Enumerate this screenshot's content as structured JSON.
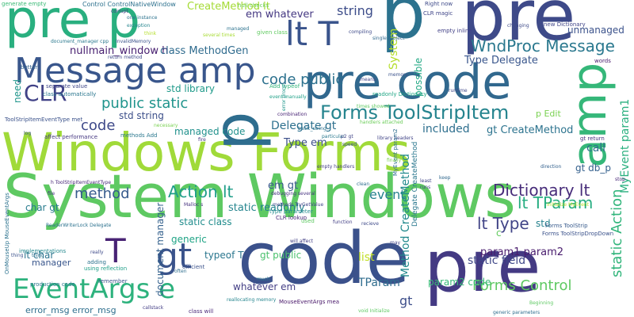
{
  "words": [
    {
      "text": "Windows Forms",
      "color": "#a0da39"
    },
    {
      "text": "System Windows",
      "color": "#5ec962"
    },
    {
      "text": "code",
      "color": "#3b518b"
    },
    {
      "text": "pre",
      "color": "#443a83"
    },
    {
      "text": "pre code",
      "color": "#31688e"
    },
    {
      "text": "p",
      "color": "#2c728e"
    },
    {
      "text": "pre",
      "color": "#3e4a89"
    },
    {
      "text": "pre p",
      "color": "#29af7f"
    },
    {
      "text": "Message amp",
      "color": "#39568c"
    },
    {
      "text": "amp",
      "color": "#35b779"
    },
    {
      "text": "p",
      "color": "#2e6d8e"
    },
    {
      "text": "lt T",
      "color": "#3a548c"
    },
    {
      "text": "gt",
      "color": "#3a538b"
    },
    {
      "text": "T",
      "color": "#482374"
    },
    {
      "text": "EventArgs e",
      "color": "#2db27d"
    },
    {
      "text": "CLR",
      "color": "#414287"
    },
    {
      "text": "WndProc Message",
      "color": "#2a788e"
    },
    {
      "text": "Forms ToolStripItem",
      "color": "#25848e"
    },
    {
      "text": "Dictionary lt",
      "color": "#472c7a"
    },
    {
      "text": "Action lt",
      "color": "#1f9e89"
    },
    {
      "text": "code public",
      "color": "#2c718e"
    },
    {
      "text": "public static",
      "color": "#1f948c"
    },
    {
      "text": "string",
      "color": "#3d4d8a"
    },
    {
      "text": "method",
      "color": "#375b8d"
    },
    {
      "text": "lt Type",
      "color": "#414487"
    },
    {
      "text": "lt TParam",
      "color": "#26ad81"
    },
    {
      "text": "Forms Control",
      "color": "#5ec962"
    },
    {
      "text": "static Action",
      "color": "#31b57b"
    },
    {
      "text": "MyEvent param1",
      "color": "#2ab07f"
    },
    {
      "text": "nullmain_window h",
      "color": "#482071"
    },
    {
      "text": "class MethodGen",
      "color": "#2f6b8e"
    },
    {
      "text": "em whatever",
      "color": "#453882"
    },
    {
      "text": "Type Delegate",
      "color": "#39568c"
    },
    {
      "text": "included",
      "color": "#2e6f8e"
    },
    {
      "text": "gt CreateMethod",
      "color": "#2c738e"
    },
    {
      "text": "event",
      "color": "#26828e"
    },
    {
      "text": "param1 param2",
      "color": "#481b6d"
    },
    {
      "text": "static field",
      "color": "#3f4788"
    },
    {
      "text": "gt db_p",
      "color": "#34608d"
    },
    {
      "text": "call",
      "color": "#2e6e8e"
    },
    {
      "text": "CreateMethod lt",
      "color": "#a5db36"
    },
    {
      "text": "std library",
      "color": "#1f9a8a"
    },
    {
      "text": "std string",
      "color": "#3c4f8a"
    },
    {
      "text": "managed code",
      "color": "#21918c"
    },
    {
      "text": "Delegate gt",
      "color": "#2d708e"
    },
    {
      "text": "em gt",
      "color": "#38598c"
    },
    {
      "text": "static readonly",
      "color": "#25858e"
    },
    {
      "text": "static class",
      "color": "#228d8d"
    },
    {
      "text": "typeof T",
      "color": "#2a768e"
    },
    {
      "text": "gt public",
      "color": "#4ac16d"
    },
    {
      "text": "whatever em",
      "color": "#433e85"
    },
    {
      "text": "TParam",
      "color": "#2f6c8e"
    },
    {
      "text": "param2 code",
      "color": "#38b977"
    },
    {
      "text": "lt char",
      "color": "#2b748e"
    },
    {
      "text": "generic",
      "color": "#20a486"
    },
    {
      "text": "char gt",
      "color": "#287c8e"
    },
    {
      "text": "error_msg error_msg",
      "color": "#2e6f8e"
    },
    {
      "text": "manager",
      "color": "#39568c"
    },
    {
      "text": "list",
      "color": "#c2df23"
    },
    {
      "text": "gt",
      "color": "#3d4e8a"
    },
    {
      "text": "code",
      "color": "#3e4989"
    },
    {
      "text": "System",
      "color": "#b5de2b"
    },
    {
      "text": "possible",
      "color": "#22a884"
    },
    {
      "text": "need",
      "color": "#1f958b"
    },
    {
      "text": "Method CreateMethod",
      "color": "#238a8d"
    },
    {
      "text": "document manager",
      "color": "#34618d"
    },
    {
      "text": "Type em",
      "color": "#3c4f8a"
    },
    {
      "text": "std",
      "color": "#26828e"
    },
    {
      "text": "c",
      "color": "#63cb5f"
    },
    {
      "text": "p Edit",
      "color": "#7ad151"
    },
    {
      "text": "unmanaged",
      "color": "#3b528b"
    },
    {
      "text": "null checks",
      "color": "#6ece58"
    },
    {
      "text": "CLR magic",
      "color": "#404688"
    },
    {
      "text": "Right now",
      "color": "#3e4a89"
    },
    {
      "text": "generate empty",
      "color": "#3aba76"
    },
    {
      "text": "Control ControlNativeWindow",
      "color": "#2d718e"
    },
    {
      "text": "several times",
      "color": "#a8db34"
    },
    {
      "text": "new Dictionary",
      "color": "#404588"
    },
    {
      "text": "empty inline",
      "color": "#424086"
    },
    {
      "text": "given class",
      "color": "#60ca60"
    },
    {
      "text": "event manually",
      "color": "#1fa187"
    },
    {
      "text": "readonly Dictionary",
      "color": "#21a685"
    },
    {
      "text": "class automatically",
      "color": "#2a768e"
    },
    {
      "text": "separate value",
      "color": "#3f4788"
    },
    {
      "text": "return method",
      "color": "#3e4989"
    },
    {
      "text": "Add typeof",
      "color": "#31b57b"
    },
    {
      "text": "combination",
      "color": "#482475"
    },
    {
      "text": "methods Add",
      "color": "#2a788e"
    },
    {
      "text": "affect performance",
      "color": "#453781"
    },
    {
      "text": "ToolStripItemEventType met",
      "color": "#3b528b"
    },
    {
      "text": "h ToolStripItemEventType",
      "color": "#482878"
    },
    {
      "text": "ReaderWriterLock Delegate",
      "color": "#2c728e"
    },
    {
      "text": "using reflection",
      "color": "#1f9f88"
    },
    {
      "text": "debugging several",
      "color": "#46337f"
    },
    {
      "text": "Delegate CreateMethod",
      "color": "#2a778e"
    },
    {
      "text": "type parameter",
      "color": "#228c8d"
    },
    {
      "text": "CLR lookup",
      "color": "#482878"
    },
    {
      "text": "empty handlers",
      "color": "#433e85"
    },
    {
      "text": "library headers",
      "color": "#414487"
    },
    {
      "text": "handlers attached",
      "color": "#6ccd5a"
    },
    {
      "text": "MouseEventArgs mea",
      "color": "#481769"
    },
    {
      "text": "reallocating memory",
      "color": "#25858e"
    },
    {
      "text": "Forms ToolStripDropDown",
      "color": "#3b528b"
    },
    {
      "text": "Forms ToolStrip",
      "color": "#375a8c"
    },
    {
      "text": "methods TryGetValue",
      "color": "#404588"
    },
    {
      "text": "void Initialize",
      "color": "#5ec962"
    },
    {
      "text": "generic parameters",
      "color": "#2e6e8e"
    },
    {
      "text": "production code",
      "color": "#2a778e"
    },
    {
      "text": "class will",
      "color": "#482677"
    },
    {
      "text": "implementations",
      "color": "#23888e"
    },
    {
      "text": "efficient",
      "color": "#3b528b"
    },
    {
      "text": "adding",
      "color": "#2c738e"
    },
    {
      "text": "remember",
      "color": "#3b528b"
    },
    {
      "text": "will affect",
      "color": "#423f85"
    },
    {
      "text": "direction",
      "color": "#34618d"
    },
    {
      "text": "Beginning",
      "color": "#5ec962"
    },
    {
      "text": "Initialize MyEvent",
      "color": "#b5de2b"
    },
    {
      "text": "MyEvent param2",
      "color": "#2e6e8e"
    },
    {
      "text": "single project",
      "color": "#31688e"
    },
    {
      "text": "memory",
      "color": "#3b528b"
    },
    {
      "text": "gt return",
      "color": "#46327e"
    },
    {
      "text": "words",
      "color": "#481b6d"
    },
    {
      "text": "changing",
      "color": "#3e4a89"
    },
    {
      "text": "basic_string",
      "color": "#2c728e"
    },
    {
      "text": "particular",
      "color": "#2a788e"
    },
    {
      "text": "error prone",
      "color": "#1f968b"
    },
    {
      "text": "finally",
      "color": "#7ad151"
    },
    {
      "text": "runtime",
      "color": "#3f4889"
    },
    {
      "text": "InvalidMemory",
      "color": "#3b528b"
    },
    {
      "text": "one instance",
      "color": "#2c728e"
    },
    {
      "text": "exception",
      "color": "#25858e"
    },
    {
      "text": "document_manager cpp",
      "color": "#2a788e"
    },
    {
      "text": "Malloc s",
      "color": "#46327e"
    },
    {
      "text": "OnMouseUp MouseEventArgs",
      "color": "#2c728e"
    },
    {
      "text": "times showed",
      "color": "#5ec962"
    },
    {
      "text": "fire",
      "color": "#453781"
    },
    {
      "text": "p2 gt",
      "color": "#414487"
    },
    {
      "text": "speed",
      "color": "#3b528b"
    },
    {
      "text": "clean",
      "color": "#2e6e8e"
    },
    {
      "text": "recieve",
      "color": "#3e4a89"
    },
    {
      "text": "function",
      "color": "#423f85"
    },
    {
      "text": "least",
      "color": "#404588"
    },
    {
      "text": "runs",
      "color": "#414487"
    },
    {
      "text": "keep",
      "color": "#31688e"
    },
    {
      "text": "stop",
      "color": "#482878"
    },
    {
      "text": "log",
      "color": "#3b528b"
    },
    {
      "text": "thing",
      "color": "#2c728e"
    },
    {
      "text": "really",
      "color": "#3e4a89"
    },
    {
      "text": "callstack",
      "color": "#433e85"
    },
    {
      "text": "much",
      "color": "#2a788e"
    },
    {
      "text": "often",
      "color": "#2e6e8e"
    },
    {
      "text": "file",
      "color": "#46327e"
    },
    {
      "text": "used",
      "color": "#5ec962"
    },
    {
      "text": "may",
      "color": "#414487"
    },
    {
      "text": "necessary",
      "color": "#7ad151"
    },
    {
      "text": "thing",
      "color": "#3b528b"
    },
    {
      "text": "better",
      "color": "#34618d"
    },
    {
      "text": "think",
      "color": "#b5de2b"
    },
    {
      "text": "corrupt",
      "color": "#423f85"
    },
    {
      "text": "compiling",
      "color": "#3e4a89"
    },
    {
      "text": "managed",
      "color": "#2c728e"
    },
    {
      "text": "means",
      "color": "#414487"
    }
  ]
}
